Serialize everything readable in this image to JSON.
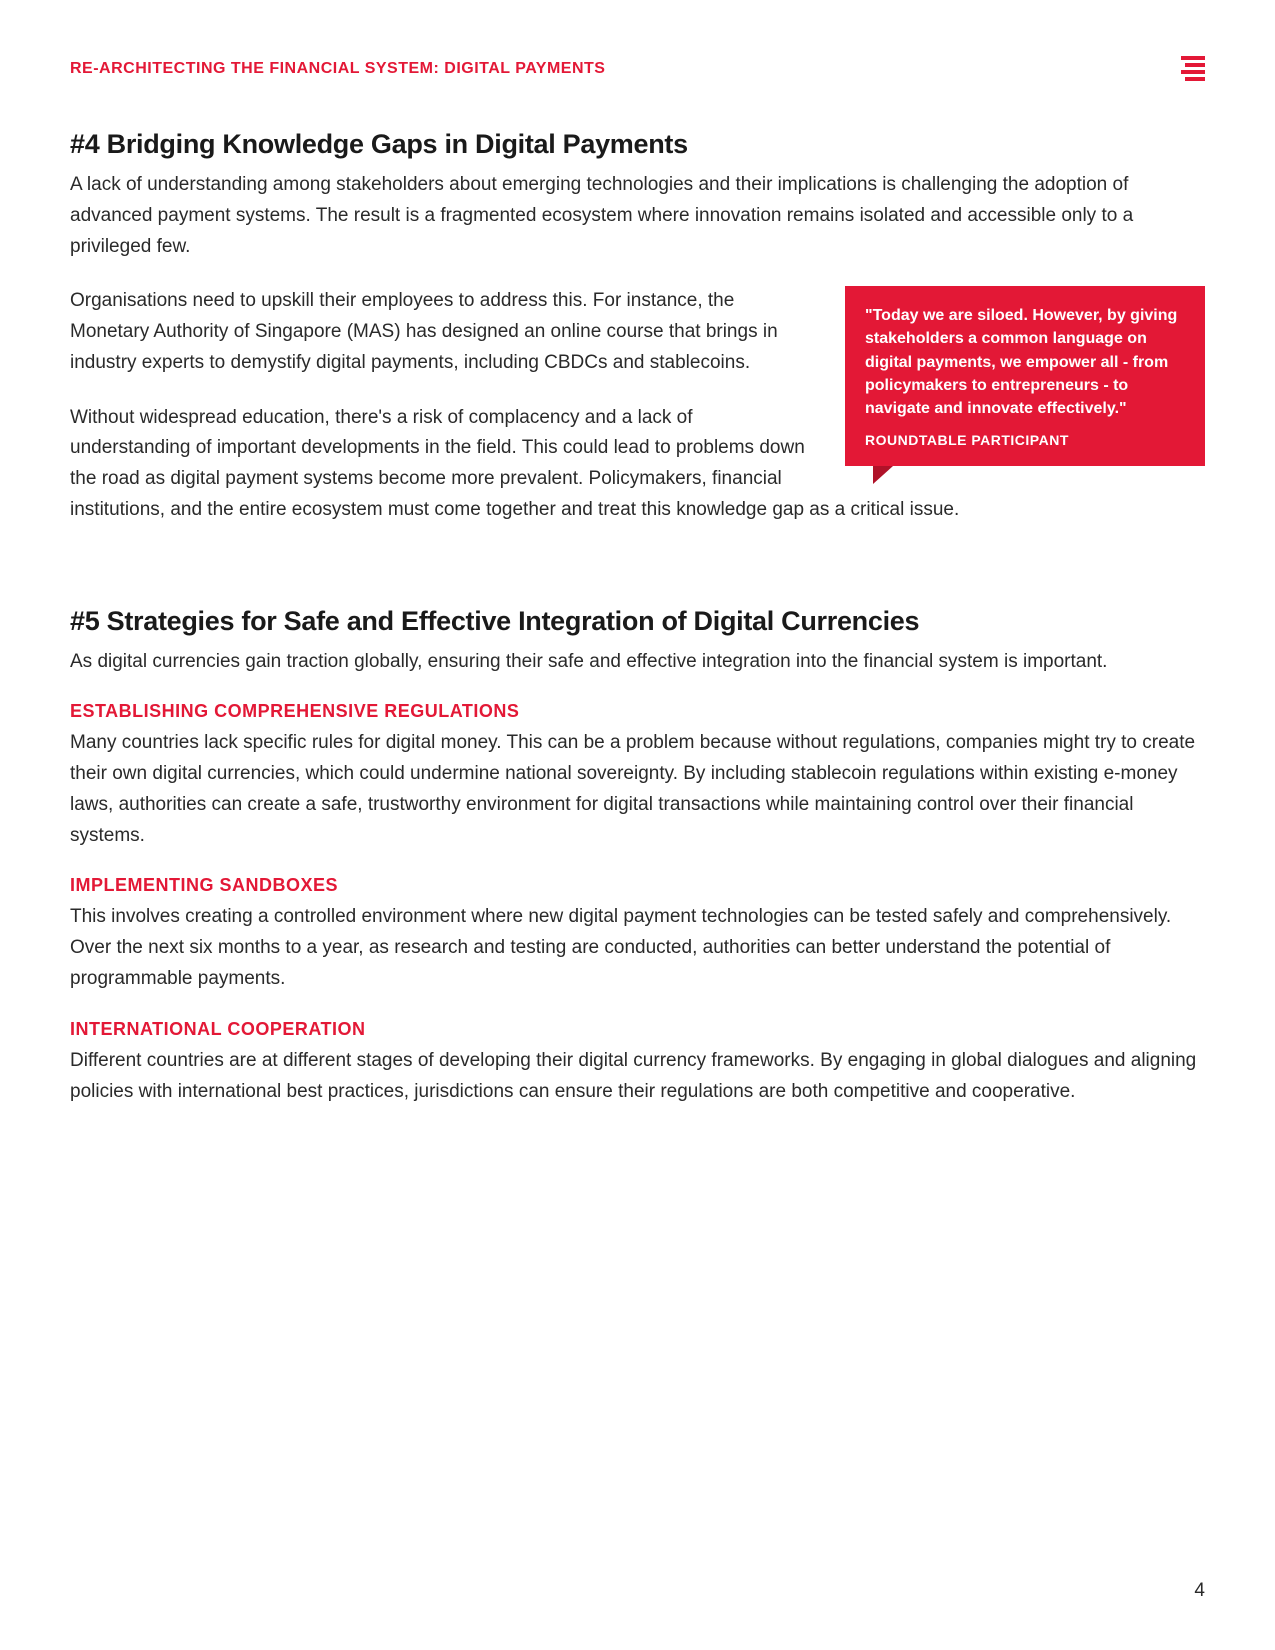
{
  "header": {
    "title": "RE-ARCHITECTING THE FINANCIAL SYSTEM: DIGITAL PAYMENTS"
  },
  "colors": {
    "accent": "#e31836",
    "accent_dark": "#b01229",
    "text": "#2a2a2a",
    "heading": "#1a1a1a",
    "white": "#ffffff"
  },
  "section4": {
    "heading": "#4 Bridging Knowledge Gaps in Digital Payments",
    "p1": "A lack of understanding among stakeholders about emerging technologies and their implications is challenging the adoption of advanced payment systems. The result is a fragmented ecosystem where innovation remains isolated and accessible only to a privileged few.",
    "p2": "Organisations need to upskill their employees to address this. For instance, the Monetary Authority of Singapore (MAS) has designed an online course that brings in industry experts to demystify digital payments, including CBDCs and stablecoins.",
    "p3": "Without widespread education, there's a risk of complacency and a lack of understanding of important developments in the field. This could lead to problems down the road as digital payment systems become more prevalent. Policymakers, financial institutions, and the entire ecosystem must come together and treat this knowledge gap as a critical issue."
  },
  "quote": {
    "text": "\"Today we are siloed. However, by giving stakeholders a common language on digital payments, we empower all - from policymakers to entrepreneurs - to navigate and innovate effectively.\"",
    "attribution": "ROUNDTABLE PARTICIPANT"
  },
  "section5": {
    "heading": "#5 Strategies for Safe and Effective Integration of Digital Currencies",
    "intro": "As digital currencies gain traction globally, ensuring their safe and effective integration into the financial system is important.",
    "sub1": {
      "title": "ESTABLISHING COMPREHENSIVE REGULATIONS",
      "body": "Many countries lack specific rules for digital money. This can be a problem because without regulations, companies might try to create their own digital currencies, which could undermine national sovereignty. By including stablecoin regulations within existing e-money laws, authorities can create a safe, trustworthy environment for digital transactions while maintaining control over their financial systems."
    },
    "sub2": {
      "title": "IMPLEMENTING SANDBOXES",
      "body": "This involves creating a controlled environment where new digital payment technologies can be tested safely and comprehensively. Over the next six months to a year, as research and testing are conducted, authorities can better understand the potential of programmable payments."
    },
    "sub3": {
      "title": "INTERNATIONAL COOPERATION",
      "body": "Different countries are at different stages of developing their digital currency frameworks. By engaging in global dialogues and aligning policies with international best practices, jurisdictions can ensure their regulations are both competitive and cooperative."
    }
  },
  "page_number": "4"
}
